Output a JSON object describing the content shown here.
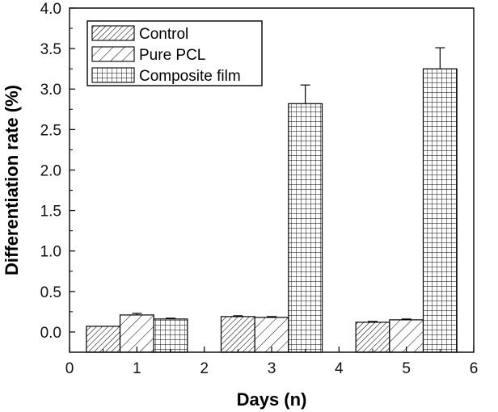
{
  "chart_data": {
    "type": "bar",
    "xlabel": "Days (n)",
    "ylabel": "Differentiation rate (%)",
    "xlim": [
      0,
      6
    ],
    "ylim": [
      -0.25,
      4.0
    ],
    "x_ticks": [
      "0",
      "1",
      "2",
      "3",
      "4",
      "5",
      "6"
    ],
    "y_ticks": [
      "0.0",
      "0.5",
      "1.0",
      "1.5",
      "2.0",
      "2.5",
      "3.0",
      "3.5",
      "4.0"
    ],
    "categories": [
      1,
      3,
      5
    ],
    "bar_width": 0.5,
    "grid": false,
    "legend_position": "top-left",
    "series": [
      {
        "name": "Control",
        "pattern": "diagonal-dense",
        "values": [
          0.07,
          0.19,
          0.12
        ],
        "errors": [
          0.0,
          0.01,
          0.01
        ]
      },
      {
        "name": "Pure PCL",
        "pattern": "diagonal-sparse",
        "values": [
          0.21,
          0.18,
          0.15
        ],
        "errors": [
          0.02,
          0.01,
          0.01
        ]
      },
      {
        "name": "Composite film",
        "pattern": "grid",
        "values": [
          0.16,
          2.82,
          3.25
        ],
        "errors": [
          0.01,
          0.23,
          0.26
        ]
      }
    ]
  }
}
